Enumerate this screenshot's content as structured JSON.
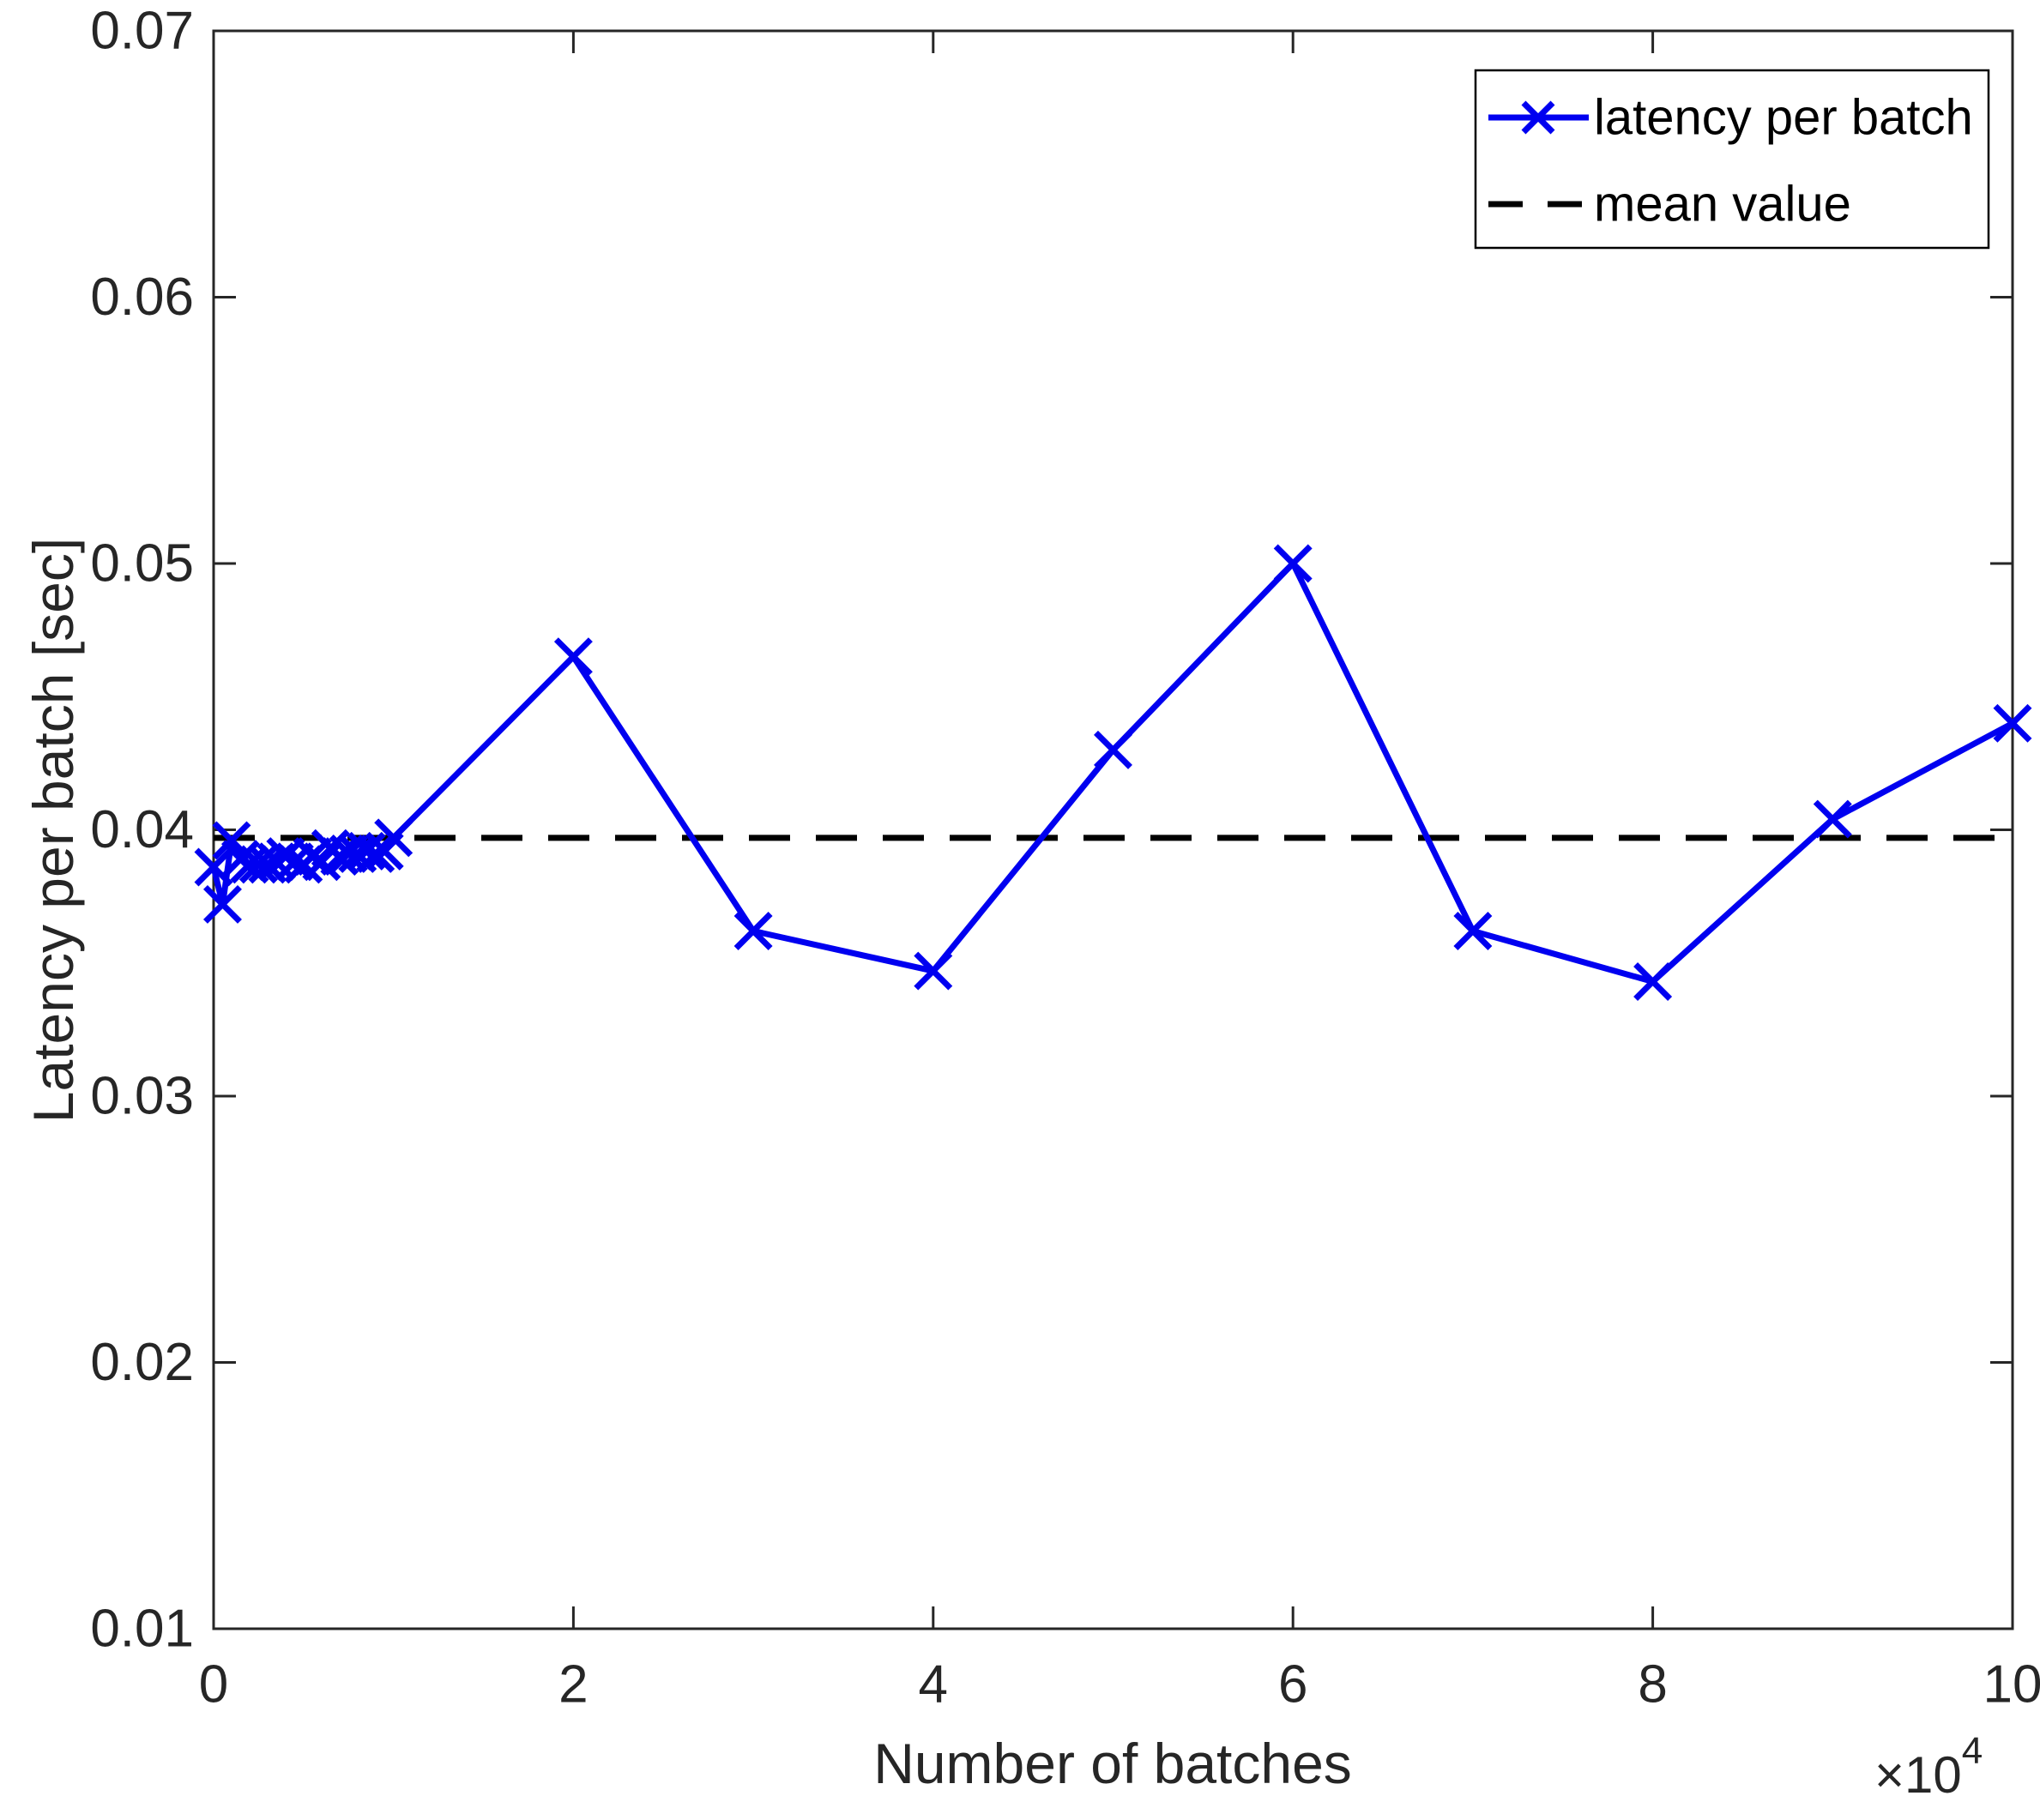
{
  "chart_data": {
    "type": "line",
    "title": "",
    "xlabel": "Number of batches",
    "ylabel": "Latency per batch [sec]",
    "x_offset_label": {
      "base": "×10",
      "exponent": "4"
    },
    "xlim": [
      0,
      10
    ],
    "ylim": [
      0.01,
      0.07
    ],
    "x_ticks": [
      "0",
      "2",
      "4",
      "6",
      "8",
      "10"
    ],
    "y_ticks": [
      "0.01",
      "0.02",
      "0.03",
      "0.04",
      "0.05",
      "0.06",
      "0.07"
    ],
    "grid": false,
    "legend_position": "top-right",
    "x_units": "batches × 10^4",
    "series": [
      {
        "name": "latency per batch",
        "color": "#0000F0",
        "marker": "x",
        "line_style": "solid",
        "points": [
          [
            0,
            0.0386
          ],
          [
            0.05,
            0.0372
          ],
          [
            0.1,
            0.0396
          ],
          [
            0.15,
            0.0389
          ],
          [
            0.2,
            0.0387
          ],
          [
            0.25,
            0.0387
          ],
          [
            0.3,
            0.0387
          ],
          [
            0.35,
            0.0388
          ],
          [
            0.4,
            0.039
          ],
          [
            0.45,
            0.0388
          ],
          [
            0.5,
            0.0387
          ],
          [
            0.55,
            0.039
          ],
          [
            0.6,
            0.0388
          ],
          [
            0.65,
            0.0393
          ],
          [
            0.7,
            0.039
          ],
          [
            0.75,
            0.0391
          ],
          [
            0.8,
            0.0391
          ],
          [
            0.85,
            0.0392
          ],
          [
            0.9,
            0.0391
          ],
          [
            0.95,
            0.0392
          ],
          [
            1,
            0.0397
          ],
          [
            2,
            0.0465
          ],
          [
            3,
            0.0362
          ],
          [
            4,
            0.0347
          ],
          [
            5,
            0.043
          ],
          [
            6,
            0.05
          ],
          [
            7,
            0.0362
          ],
          [
            8,
            0.0343
          ],
          [
            9,
            0.0404
          ],
          [
            10,
            0.044
          ]
        ]
      },
      {
        "name": "mean value",
        "color": "#000000",
        "line_style": "dashed",
        "value": 0.0397
      }
    ]
  },
  "legend": {
    "items": [
      {
        "label": "latency per batch"
      },
      {
        "label": "mean value"
      }
    ]
  },
  "colors": {
    "axis": "#262626",
    "line_blue": "#0000F0",
    "mean_black": "#000000",
    "background": "#ffffff"
  }
}
